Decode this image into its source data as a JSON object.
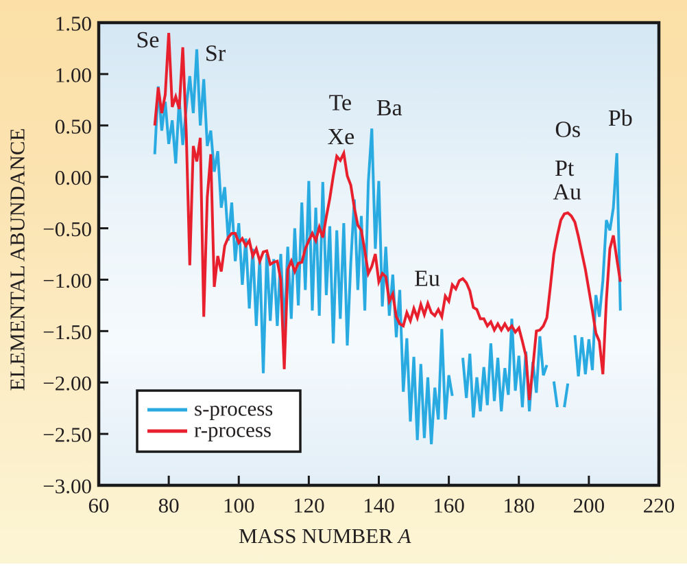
{
  "figure": {
    "background_top": "#FBDFA6",
    "background_bottom": "#FCF5D4"
  },
  "chart_data": {
    "type": "line",
    "title": "",
    "xlabel": "MASS NUMBER",
    "xlabel_italic_suffix": "A",
    "ylabel": "ELEMENTAL ABUNDANCE",
    "xlim": [
      60,
      220
    ],
    "ylim": [
      -3.0,
      1.5
    ],
    "grid": false,
    "x_ticks": [
      60,
      80,
      100,
      120,
      140,
      160,
      180,
      200,
      220
    ],
    "x_tick_labels": [
      "60",
      "80",
      "100",
      "120",
      "140",
      "160",
      "180",
      "200",
      "220"
    ],
    "y_ticks": [
      -3.0,
      -2.5,
      -2.0,
      -1.5,
      -1.0,
      -0.5,
      0.0,
      0.5,
      1.0,
      1.5
    ],
    "y_tick_labels": [
      "−3.00",
      "−2.50",
      "−2.00",
      "−1.50",
      "−1.00",
      "−0.50",
      "0.00",
      "0.50",
      "1.00",
      "1.50"
    ],
    "axis_color": "#1A1A1A",
    "plot_bg_gradient": [
      "#D4E7F4",
      "#EDF5FA",
      "#F5FAFD",
      "#E2EEF7"
    ],
    "legend": {
      "position": "lower-left",
      "border_color": "#1A1A1A",
      "fill": "#FFFFFF",
      "items": [
        {
          "label": "s-process",
          "color": "#29ABE2"
        },
        {
          "label": "r-process",
          "color": "#E8202E"
        }
      ]
    },
    "annotations": [
      {
        "label": "Se",
        "x": 74.0,
        "y": 1.33
      },
      {
        "label": "Sr",
        "x": 93.3,
        "y": 1.2
      },
      {
        "label": "Te",
        "x": 129.0,
        "y": 0.72
      },
      {
        "label": "Xe",
        "x": 129.2,
        "y": 0.39
      },
      {
        "label": "Ba",
        "x": 143.0,
        "y": 0.67
      },
      {
        "label": "Eu",
        "x": 153.8,
        "y": -0.99
      },
      {
        "label": "Os",
        "x": 194.0,
        "y": 0.46
      },
      {
        "label": "Pt",
        "x": 193.0,
        "y": 0.08
      },
      {
        "label": "Au",
        "x": 193.8,
        "y": -0.15
      },
      {
        "label": "Pb",
        "x": 209.0,
        "y": 0.57
      }
    ],
    "series": [
      {
        "name": "s-process",
        "color": "#29ABE2",
        "stroke_width": 4,
        "points": [
          [
            76,
            0.22
          ],
          [
            77,
            0.88
          ],
          [
            78,
            0.45
          ],
          [
            79,
            0.73
          ],
          [
            80,
            0.32
          ],
          [
            81,
            0.55
          ],
          [
            82,
            0.13
          ],
          [
            83,
            0.75
          ],
          [
            84,
            0.31
          ],
          [
            85,
            0.68
          ],
          [
            86,
            0.98
          ],
          [
            87,
            0.62
          ],
          [
            88,
            1.24
          ],
          [
            89,
            0.5
          ],
          [
            90,
            0.95
          ],
          [
            91,
            0.3
          ],
          [
            92,
            0.45
          ],
          [
            93,
            0.05
          ],
          [
            94,
            0.25
          ],
          [
            95,
            -0.3
          ],
          [
            96,
            -0.1
          ],
          [
            97,
            -0.62
          ],
          [
            98,
            -0.25
          ],
          [
            99,
            -0.82
          ],
          [
            100,
            -0.45
          ],
          [
            101,
            -1.05
          ],
          [
            102,
            -0.6
          ],
          [
            103,
            -1.28
          ],
          [
            104,
            -0.7
          ],
          [
            105,
            -1.45
          ],
          [
            106,
            -0.78
          ],
          [
            107,
            -1.91
          ],
          [
            108,
            -0.75
          ],
          [
            109,
            -1.4
          ],
          [
            110,
            -0.8
          ],
          [
            111,
            -1.45
          ],
          [
            112,
            -0.75
          ],
          [
            113,
            -1.5
          ],
          [
            114,
            -0.68
          ],
          [
            115,
            -1.38
          ],
          [
            116,
            -0.5
          ],
          [
            117,
            -1.25
          ],
          [
            118,
            -0.25
          ],
          [
            119,
            -1.1
          ],
          [
            120,
            -0.04
          ],
          [
            121,
            -1.3
          ],
          [
            122,
            -0.3
          ],
          [
            123,
            -1.35
          ],
          [
            124,
            -0.05
          ],
          [
            125,
            -1.15
          ],
          [
            126,
            -0.48
          ],
          [
            127,
            -1.62
          ],
          [
            128,
            -0.52
          ],
          [
            129,
            -1.38
          ],
          [
            130,
            -0.45
          ],
          [
            131,
            -1.64
          ],
          [
            132,
            -0.84
          ],
          [
            133,
            -0.22
          ],
          [
            134,
            -1.1
          ],
          [
            135,
            -0.38
          ],
          [
            136,
            -1.3
          ],
          [
            137,
            -0.05
          ],
          [
            138,
            0.47
          ],
          [
            139,
            -0.7
          ],
          [
            140,
            -0.04
          ],
          [
            141,
            -1.26
          ],
          [
            142,
            -0.68
          ],
          [
            143,
            -1.35
          ],
          [
            144,
            -0.95
          ],
          [
            145,
            -1.56
          ],
          [
            146,
            -1.1
          ],
          [
            147,
            -2.09
          ],
          [
            148,
            -1.57
          ],
          [
            149,
            -2.38
          ],
          [
            150,
            -1.75
          ],
          [
            151,
            -2.56
          ],
          [
            152,
            -1.82
          ],
          [
            153,
            -2.54
          ],
          [
            154,
            -1.95
          ],
          [
            155,
            -2.6
          ],
          [
            156,
            -2.05
          ],
          [
            157,
            -2.36
          ],
          [
            158,
            -1.48
          ],
          [
            159,
            -2.36
          ],
          [
            160,
            -1.93
          ],
          [
            161,
            -2.13
          ],
          [
            162,
            null
          ],
          [
            164,
            -1.76
          ],
          [
            165,
            -2.15
          ],
          [
            166,
            -1.72
          ],
          [
            167,
            -2.34
          ],
          [
            168,
            -1.95
          ],
          [
            169,
            -2.28
          ],
          [
            170,
            -1.85
          ],
          [
            171,
            -2.22
          ],
          [
            172,
            -1.62
          ],
          [
            173,
            -2.18
          ],
          [
            174,
            -1.76
          ],
          [
            175,
            -2.28
          ],
          [
            176,
            -1.86
          ],
          [
            177,
            -2.12
          ],
          [
            178,
            -1.38
          ],
          [
            179,
            -2.08
          ],
          [
            180,
            -1.74
          ],
          [
            181,
            -2.24
          ],
          [
            182,
            -1.7
          ],
          [
            183,
            -2.28
          ],
          [
            184,
            -1.8
          ],
          [
            185,
            -2.1
          ],
          [
            186,
            -1.55
          ],
          [
            187,
            -1.93
          ],
          [
            188,
            -1.83
          ],
          [
            189,
            null
          ],
          [
            190,
            -1.99
          ],
          [
            191,
            -2.24
          ],
          [
            192,
            null
          ],
          [
            193,
            -2.24
          ],
          [
            194,
            -2.01
          ],
          [
            195,
            null
          ],
          [
            196,
            -1.54
          ],
          [
            197,
            -1.94
          ],
          [
            198,
            -1.56
          ],
          [
            199,
            -1.92
          ],
          [
            200,
            -1.58
          ],
          [
            201,
            -1.88
          ],
          [
            202,
            -1.15
          ],
          [
            203,
            -1.36
          ],
          [
            204,
            -1.01
          ],
          [
            205,
            -0.42
          ],
          [
            206,
            -0.52
          ],
          [
            207,
            -0.3
          ],
          [
            208,
            0.23
          ],
          [
            209,
            -1.3
          ]
        ]
      },
      {
        "name": "r-process",
        "color": "#E8202E",
        "stroke_width": 4,
        "points": [
          [
            76,
            0.5
          ],
          [
            77,
            0.87
          ],
          [
            78,
            0.62
          ],
          [
            79,
            0.8
          ],
          [
            80,
            1.4
          ],
          [
            81,
            0.68
          ],
          [
            82,
            0.78
          ],
          [
            83,
            0.66
          ],
          [
            84,
            1.26
          ],
          [
            85,
            0.42
          ],
          [
            86,
            -0.86
          ],
          [
            87,
            0.3
          ],
          [
            88,
            0.15
          ],
          [
            89,
            0.38
          ],
          [
            90,
            -1.36
          ],
          [
            91,
            -0.2
          ],
          [
            92,
            0.22
          ],
          [
            93,
            -1.07
          ],
          [
            94,
            -0.77
          ],
          [
            95,
            -0.92
          ],
          [
            96,
            -0.67
          ],
          [
            97,
            -0.59
          ],
          [
            98,
            -0.55
          ],
          [
            99,
            -0.55
          ],
          [
            100,
            -0.64
          ],
          [
            101,
            -0.6
          ],
          [
            102,
            -0.67
          ],
          [
            103,
            -0.62
          ],
          [
            104,
            -0.77
          ],
          [
            105,
            -0.7
          ],
          [
            106,
            -0.82
          ],
          [
            107,
            -0.73
          ],
          [
            108,
            -0.72
          ],
          [
            109,
            -0.85
          ],
          [
            110,
            -0.83
          ],
          [
            111,
            -0.82
          ],
          [
            112,
            -1.0
          ],
          [
            113,
            -1.87
          ],
          [
            114,
            -0.9
          ],
          [
            115,
            -0.82
          ],
          [
            116,
            -0.92
          ],
          [
            117,
            -0.84
          ],
          [
            118,
            -0.83
          ],
          [
            119,
            -0.7
          ],
          [
            120,
            -0.62
          ],
          [
            121,
            -0.55
          ],
          [
            122,
            -0.62
          ],
          [
            123,
            -0.49
          ],
          [
            124,
            -0.59
          ],
          [
            125,
            -0.39
          ],
          [
            126,
            -0.21
          ],
          [
            127,
            0.01
          ],
          [
            128,
            0.2
          ],
          [
            129,
            0.16
          ],
          [
            130,
            0.23
          ],
          [
            131,
            0.01
          ],
          [
            132,
            -0.08
          ],
          [
            133,
            -0.3
          ],
          [
            134,
            -0.47
          ],
          [
            135,
            -0.52
          ],
          [
            136,
            -0.72
          ],
          [
            137,
            -0.94
          ],
          [
            138,
            -0.87
          ],
          [
            139,
            -0.75
          ],
          [
            140,
            -1.02
          ],
          [
            141,
            -0.94
          ],
          [
            142,
            -0.97
          ],
          [
            143,
            -1.21
          ],
          [
            144,
            -1.14
          ],
          [
            145,
            -1.36
          ],
          [
            146,
            -1.43
          ],
          [
            147,
            -1.45
          ],
          [
            148,
            -1.32
          ],
          [
            149,
            -1.4
          ],
          [
            150,
            -1.28
          ],
          [
            151,
            -1.37
          ],
          [
            152,
            -1.24
          ],
          [
            153,
            -1.34
          ],
          [
            154,
            -1.23
          ],
          [
            155,
            -1.32
          ],
          [
            156,
            -1.35
          ],
          [
            157,
            -1.29
          ],
          [
            158,
            -1.36
          ],
          [
            159,
            -1.16
          ],
          [
            160,
            -1.21
          ],
          [
            161,
            -1.05
          ],
          [
            162,
            -1.09
          ],
          [
            163,
            -1.01
          ],
          [
            164,
            -0.99
          ],
          [
            165,
            -1.03
          ],
          [
            166,
            -1.11
          ],
          [
            167,
            -1.27
          ],
          [
            168,
            -1.29
          ],
          [
            169,
            -1.38
          ],
          [
            170,
            -1.38
          ],
          [
            171,
            -1.45
          ],
          [
            172,
            -1.41
          ],
          [
            173,
            -1.49
          ],
          [
            174,
            -1.43
          ],
          [
            175,
            -1.49
          ],
          [
            176,
            -1.43
          ],
          [
            177,
            -1.49
          ],
          [
            178,
            -1.45
          ],
          [
            179,
            -1.51
          ],
          [
            180,
            -1.47
          ],
          [
            181,
            -1.6
          ],
          [
            182,
            -1.74
          ],
          [
            183,
            -2.17
          ],
          [
            184,
            -1.85
          ],
          [
            185,
            -1.5
          ],
          [
            186,
            -1.49
          ],
          [
            187,
            -1.45
          ],
          [
            188,
            -1.37
          ],
          [
            189,
            -1.07
          ],
          [
            190,
            -0.75
          ],
          [
            191,
            -0.57
          ],
          [
            192,
            -0.42
          ],
          [
            193,
            -0.36
          ],
          [
            194,
            -0.35
          ],
          [
            195,
            -0.38
          ],
          [
            196,
            -0.44
          ],
          [
            197,
            -0.58
          ],
          [
            198,
            -0.74
          ],
          [
            199,
            -0.9
          ],
          [
            200,
            -1.1
          ],
          [
            201,
            -1.3
          ],
          [
            202,
            -1.52
          ],
          [
            203,
            -1.6
          ],
          [
            204,
            -1.92
          ],
          [
            205,
            -1.2
          ],
          [
            206,
            -0.7
          ],
          [
            207,
            -0.57
          ],
          [
            208,
            -0.8
          ],
          [
            209,
            -1.02
          ]
        ]
      }
    ]
  }
}
